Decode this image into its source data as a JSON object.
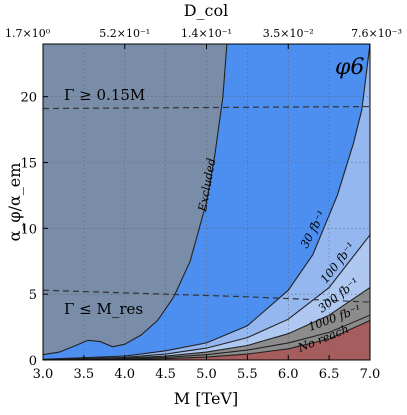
{
  "chart_data": {
    "type": "area",
    "panel_label": "φ6",
    "xlabel": "M [TeV]",
    "ylabel": "α_φ/α_em",
    "top_xlabel": "D_col",
    "xlim": [
      3.0,
      7.0
    ],
    "ylim": [
      0,
      24
    ],
    "x_ticks": [
      "3.0",
      "3.5",
      "4.0",
      "4.5",
      "5.0",
      "5.5",
      "6.0",
      "6.5",
      "7.0"
    ],
    "y_ticks": [
      "0",
      "5",
      "10",
      "15",
      "20"
    ],
    "top_ticks": [
      "1.7×10⁰",
      "5.2×10⁻¹",
      "1.4×10⁻¹",
      "3.5×10⁻²",
      "7.6×10⁻³"
    ],
    "grid": true,
    "colors": {
      "excluded": "#7d8ca3",
      "width_band": "#8f8f8f",
      "light_band": "#d6d6d6",
      "reach_300": "#aec8f2",
      "reach_100": "#94b7ef",
      "reach_30": "#4c8ff0",
      "no_reach": "#a65d5d",
      "lumi_band": "#8c8c8c"
    },
    "regions": {
      "gamma_upper_label": "Γ ≥ 0.15M",
      "gamma_upper_boundary": [
        [
          3.0,
          19.1
        ],
        [
          7.0,
          19.25
        ]
      ],
      "gamma_lower_label": "Γ ≤ M_res",
      "gamma_lower_boundary": [
        [
          3.0,
          5.3
        ],
        [
          4.5,
          5.0
        ],
        [
          5.5,
          4.8
        ],
        [
          7.0,
          4.4
        ]
      ]
    },
    "series": [
      {
        "name": "Excluded",
        "x": [
          3.0,
          3.2,
          3.4,
          3.55,
          3.7,
          3.85,
          4.0,
          4.2,
          4.4,
          4.6,
          4.8,
          5.0,
          5.1,
          5.2,
          5.25
        ],
        "y": [
          0.4,
          0.6,
          1.1,
          1.5,
          1.4,
          1.0,
          1.2,
          1.9,
          3.0,
          4.8,
          7.5,
          12.0,
          15.5,
          20.0,
          24.0
        ]
      },
      {
        "name": "30 fb⁻¹",
        "x": [
          3.0,
          4.0,
          4.5,
          5.0,
          5.5,
          6.0,
          6.3,
          6.6,
          6.8,
          6.9,
          7.0
        ],
        "y": [
          0.05,
          0.3,
          0.7,
          1.3,
          2.6,
          5.3,
          8.0,
          12.5,
          16.5,
          19.0,
          24.0
        ]
      },
      {
        "name": "100 fb⁻¹",
        "x": [
          3.0,
          4.0,
          4.5,
          5.0,
          5.5,
          6.0,
          6.5,
          7.0
        ],
        "y": [
          0.04,
          0.2,
          0.45,
          0.9,
          1.7,
          3.1,
          5.5,
          9.5
        ]
      },
      {
        "name": "300 fb⁻¹",
        "x": [
          3.0,
          4.0,
          4.5,
          5.0,
          5.5,
          6.0,
          6.5,
          7.0
        ],
        "y": [
          0.03,
          0.14,
          0.3,
          0.6,
          1.1,
          2.0,
          3.4,
          5.5
        ]
      },
      {
        "name": "1000 fb⁻¹",
        "x": [
          3.0,
          4.0,
          4.5,
          5.0,
          5.5,
          6.0,
          6.5,
          7.0
        ],
        "y": [
          0.02,
          0.1,
          0.2,
          0.4,
          0.75,
          1.3,
          2.1,
          3.4
        ]
      },
      {
        "name": "No reach",
        "x": [
          3.0,
          4.0,
          4.5,
          5.0,
          5.5,
          6.0,
          6.5,
          7.0
        ],
        "y": [
          0.0,
          0.05,
          0.1,
          0.22,
          0.45,
          0.85,
          1.6,
          3.0
        ]
      }
    ]
  }
}
